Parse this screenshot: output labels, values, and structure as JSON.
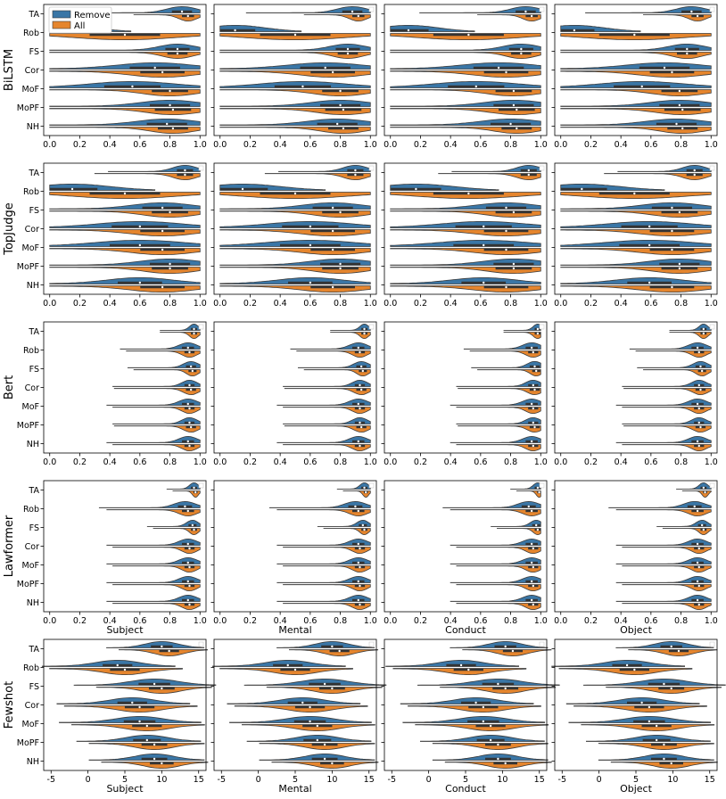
{
  "chart_data": {
    "type": "violin",
    "legend": {
      "placement": "top-left",
      "entries": [
        "Remove",
        "All"
      ]
    },
    "colors": {
      "Remove": "#3a76a6",
      "All": "#e5852d",
      "outline": "#3c3c3c"
    },
    "categories": [
      "TA",
      "Rob",
      "FS",
      "Cor",
      "MoF",
      "MoPF",
      "NH"
    ],
    "models": [
      "BiLSTM",
      "TopJudge",
      "Bert",
      "Lawformer",
      "Fewshot"
    ],
    "columns": [
      "Subject",
      "Mental",
      "Conduct",
      "Object"
    ],
    "axes": {
      "unit_range": {
        "xlim": [
          -0.04,
          1.04
        ],
        "ticks": [
          "0.0",
          "0.2",
          "0.4",
          "0.6",
          "0.8",
          "1.0"
        ],
        "tick_values": [
          0,
          0.2,
          0.4,
          0.6,
          0.8,
          1.0
        ]
      },
      "fewshot_range": {
        "xlim": [
          -6,
          16
        ],
        "ticks": [
          "-5",
          "0",
          "5",
          "10",
          "15"
        ],
        "tick_values": [
          -5,
          0,
          5,
          10,
          15
        ]
      }
    },
    "bottom_labels_rows": [
      "Lawformer",
      "Fewshot"
    ],
    "distributions": {
      "BiLSTM": {
        "Remove": [
          [
            0.88,
            0.1,
            0.55
          ],
          [
            0.1,
            0.2,
            0.9
          ],
          [
            0.85,
            0.12,
            0.4
          ],
          [
            0.7,
            0.25,
            0.05
          ],
          [
            0.55,
            0.28,
            0.05
          ],
          [
            0.8,
            0.2,
            0.15
          ],
          [
            0.78,
            0.2,
            0.1
          ]
        ],
        "All": [
          [
            0.92,
            0.06,
            0.8
          ],
          [
            0.5,
            0.35,
            0.0
          ],
          [
            0.85,
            0.1,
            0.3
          ],
          [
            0.75,
            0.22,
            0.05
          ],
          [
            0.8,
            0.18,
            0.3
          ],
          [
            0.82,
            0.18,
            0.1
          ],
          [
            0.82,
            0.15,
            0.2
          ]
        ]
      },
      "TopJudge": {
        "Remove": [
          [
            0.9,
            0.08,
            0.7
          ],
          [
            0.15,
            0.25,
            0.8
          ],
          [
            0.75,
            0.2,
            0.2
          ],
          [
            0.6,
            0.28,
            0.05
          ],
          [
            0.6,
            0.3,
            0.05
          ],
          [
            0.8,
            0.2,
            0.3
          ],
          [
            0.6,
            0.22,
            0.1
          ]
        ],
        "All": [
          [
            0.9,
            0.08,
            0.6
          ],
          [
            0.5,
            0.35,
            0.0
          ],
          [
            0.8,
            0.18,
            0.2
          ],
          [
            0.75,
            0.22,
            0.05
          ],
          [
            0.75,
            0.22,
            0.1
          ],
          [
            0.8,
            0.18,
            0.2
          ],
          [
            0.75,
            0.22,
            0.1
          ]
        ]
      },
      "Bert": {
        "Remove": [
          [
            0.96,
            0.03,
            0.85
          ],
          [
            0.92,
            0.06,
            0.7
          ],
          [
            0.94,
            0.05,
            0.7
          ],
          [
            0.93,
            0.05,
            0.6
          ],
          [
            0.92,
            0.06,
            0.6
          ],
          [
            0.93,
            0.05,
            0.6
          ],
          [
            0.92,
            0.06,
            0.6
          ]
        ],
        "All": [
          [
            0.96,
            0.03,
            0.85
          ],
          [
            0.93,
            0.05,
            0.7
          ],
          [
            0.95,
            0.04,
            0.7
          ],
          [
            0.94,
            0.05,
            0.6
          ],
          [
            0.93,
            0.05,
            0.6
          ],
          [
            0.94,
            0.05,
            0.6
          ],
          [
            0.93,
            0.05,
            0.6
          ]
        ]
      },
      "Lawformer": {
        "Remove": [
          [
            0.96,
            0.03,
            0.9
          ],
          [
            0.9,
            0.07,
            0.6
          ],
          [
            0.95,
            0.04,
            0.8
          ],
          [
            0.92,
            0.06,
            0.6
          ],
          [
            0.92,
            0.06,
            0.6
          ],
          [
            0.92,
            0.06,
            0.6
          ],
          [
            0.92,
            0.06,
            0.6
          ]
        ],
        "All": [
          [
            0.97,
            0.02,
            0.9
          ],
          [
            0.92,
            0.06,
            0.6
          ],
          [
            0.96,
            0.03,
            0.8
          ],
          [
            0.93,
            0.05,
            0.6
          ],
          [
            0.93,
            0.05,
            0.6
          ],
          [
            0.93,
            0.05,
            0.6
          ],
          [
            0.93,
            0.05,
            0.6
          ]
        ]
      },
      "Fewshot": {
        "Remove": [
          [
            10,
            2.2,
            0.7
          ],
          [
            4,
            3,
            0.1
          ],
          [
            9,
            3.2,
            0.6
          ],
          [
            6,
            3,
            0.2
          ],
          [
            7,
            3.2,
            0.2
          ],
          [
            8,
            2.8,
            0.4
          ],
          [
            9,
            2.6,
            0.5
          ]
        ],
        "All": [
          [
            11,
            2,
            0.7
          ],
          [
            5,
            3,
            0.1
          ],
          [
            10,
            2.6,
            0.6
          ],
          [
            7,
            3,
            0.2
          ],
          [
            8,
            3,
            0.3
          ],
          [
            9,
            2.6,
            0.4
          ],
          [
            10,
            2.4,
            0.5
          ]
        ]
      }
    },
    "column_shifts": {
      "Subject": 0.0,
      "Mental": 0.0,
      "Conduct": 0.02,
      "Object": -0.01
    }
  }
}
